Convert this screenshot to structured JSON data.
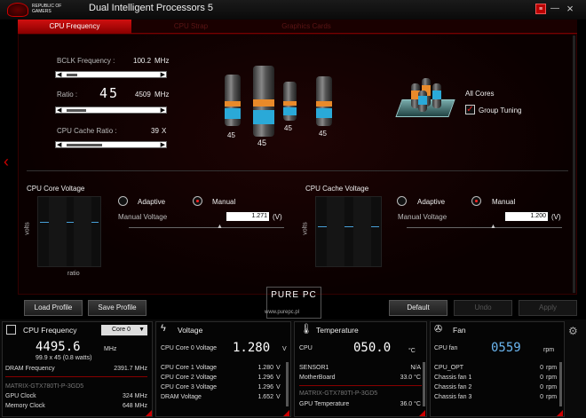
{
  "app": {
    "brand": "REPUBLIC OF GAMERS",
    "title": "Dual Intelligent Processors 5",
    "close": "×",
    "minimize": "—",
    "red_btn": "≡"
  },
  "tabs": [
    "CPU Frequency",
    "CPU Strap",
    "Graphics Cards"
  ],
  "freq": {
    "bclk_label": "BCLK Frequency :",
    "bclk_value": "100.2",
    "bclk_unit": "MHz",
    "ratio_label": "Ratio :",
    "ratio_value": "45",
    "ratio_mhz": "4509",
    "ratio_unit": "MHz",
    "cache_label": "CPU Cache Ratio :",
    "cache_value": "39",
    "cache_unit": "X"
  },
  "cores": {
    "labels": [
      "45",
      "45",
      "45",
      "45"
    ],
    "all_cores": "All Cores",
    "group_tuning": "Group Tuning"
  },
  "core_voltage": {
    "title": "CPU Core Voltage",
    "adaptive": "Adaptive",
    "manual": "Manual",
    "mv_label": "Manual Voltage",
    "mv_value": "1.271",
    "unit": "(V)",
    "yaxis": "volts",
    "xaxis": "ratio"
  },
  "cache_voltage": {
    "title": "CPU Cache Voltage",
    "adaptive": "Adaptive",
    "manual": "Manual",
    "mv_label": "Manual Voltage",
    "mv_value": "1.200",
    "unit": "(V)",
    "yaxis": "volts"
  },
  "buttons": {
    "load": "Load Profile",
    "save": "Save Profile",
    "default": "Default",
    "undo": "Undo",
    "apply": "Apply"
  },
  "watermark": {
    "brand": "PURE PC",
    "tagline": "www.purepc.pl"
  },
  "p1": {
    "title": "CPU Frequency",
    "select": "Core 0",
    "freq": "4495.6",
    "freq_unit": "MHz",
    "sub": "99.9 x 45 (0.8 watts)",
    "dram_label": "DRAM Frequency",
    "dram_value": "2391.7 MHz",
    "gpu_name": "MATRIX-GTX780TI-P-3GD5",
    "gpu_clock_label": "GPU Clock",
    "gpu_clock_value": "324 MHz",
    "mem_label": "Memory Clock",
    "mem_value": "648 MHz"
  },
  "p2": {
    "title": "Voltage",
    "main_label": "CPU Core 0 Voltage",
    "main_value": "1.280",
    "main_unit": "V",
    "rows": [
      {
        "l": "CPU Core 1 Voltage",
        "v": "1.280",
        "u": "V"
      },
      {
        "l": "CPU Core 2 Voltage",
        "v": "1.296",
        "u": "V"
      },
      {
        "l": "CPU Core 3 Voltage",
        "v": "1.296",
        "u": "V"
      },
      {
        "l": "DRAM Voltage",
        "v": "1.652",
        "u": "V"
      }
    ]
  },
  "p3": {
    "title": "Temperature",
    "main_label": "CPU",
    "main_value": "050.0",
    "main_unit": "°C",
    "rows": [
      {
        "l": "SENSOR1",
        "v": "N/A"
      },
      {
        "l": "MotherBoard",
        "v": "33.0 °C"
      }
    ],
    "gpu_name": "MATRIX-GTX780TI-P-3GD5",
    "gpu_temp_label": "GPU Temperature",
    "gpu_temp_value": "36.0 °C"
  },
  "p4": {
    "title": "Fan",
    "main_label": "CPU fan",
    "main_value": "0559",
    "main_unit": "rpm",
    "rows": [
      {
        "l": "CPU_OPT",
        "v": "0",
        "u": "rpm"
      },
      {
        "l": "Chassis fan 1",
        "v": "0",
        "u": "rpm"
      },
      {
        "l": "Chassis fan 2",
        "v": "0",
        "u": "rpm"
      },
      {
        "l": "Chassis fan 3",
        "v": "0",
        "u": "rpm"
      }
    ]
  }
}
